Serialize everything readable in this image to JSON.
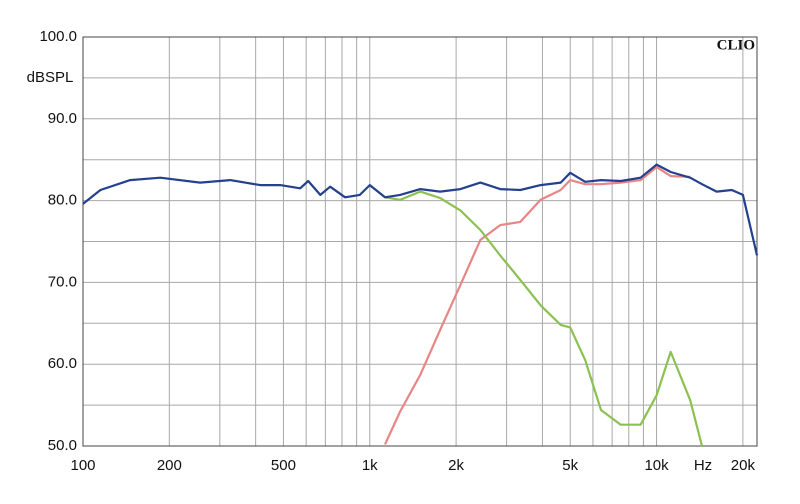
{
  "chart_data": {
    "type": "line",
    "watermark": "CLIO",
    "ylabel": "dBSPL",
    "xlabel": "Hz",
    "xscale": "log",
    "grid": true,
    "xlim": [
      100,
      22400
    ],
    "ylim": [
      50,
      100
    ],
    "xticks": [
      100,
      200,
      500,
      {
        "value": 1000,
        "label": "1k"
      },
      {
        "value": 2000,
        "label": "2k"
      },
      {
        "value": 5000,
        "label": "5k"
      },
      {
        "value": 10000,
        "label": "10k"
      },
      {
        "value": 20000,
        "label": "20k"
      }
    ],
    "xminor": [
      300,
      400,
      600,
      700,
      800,
      900,
      3000,
      4000,
      6000,
      7000,
      8000,
      9000
    ],
    "yticks": [
      {
        "value": 50,
        "label": "50.0"
      },
      {
        "value": 60,
        "label": "60.0"
      },
      {
        "value": 70,
        "label": "70.0"
      },
      {
        "value": 80,
        "label": "80.0"
      },
      {
        "value": 90,
        "label": "90.0"
      },
      {
        "value": 100,
        "label": "100.0"
      }
    ],
    "yminor": [
      55,
      65,
      75,
      85,
      95
    ],
    "x": [
      100,
      115,
      146,
      186,
      256,
      326,
      415,
      487,
      572,
      610,
      672,
      728,
      820,
      923,
      1000,
      1130,
      1276,
      1500,
      1760,
      2070,
      2430,
      2850,
      3350,
      3940,
      4630,
      5000,
      5640,
      6400,
      7500,
      8800,
      10000,
      11200,
      13100,
      14400,
      16200,
      18300,
      20000,
      22400
    ],
    "series": [
      {
        "color": "#e88585",
        "values": [
          null,
          null,
          null,
          null,
          null,
          null,
          null,
          null,
          null,
          null,
          null,
          null,
          null,
          null,
          null,
          50.2,
          54.2,
          58.7,
          64.2,
          69.7,
          75.2,
          77.0,
          77.4,
          80.1,
          81.3,
          82.5,
          82.0,
          82.0,
          82.2,
          82.5,
          84.1,
          83.0,
          82.9,
          null,
          null,
          null,
          null,
          null
        ]
      },
      {
        "color": "#8cc152",
        "values": [
          null,
          null,
          null,
          null,
          null,
          null,
          null,
          null,
          null,
          null,
          null,
          null,
          null,
          null,
          81.9,
          80.4,
          80.1,
          81.1,
          80.3,
          78.8,
          76.4,
          73.3,
          70.3,
          67.2,
          64.8,
          64.5,
          60.5,
          54.4,
          52.6,
          52.6,
          56.2,
          61.5,
          55.6,
          50.0,
          null,
          null,
          null,
          null
        ]
      },
      {
        "color": "#24408e",
        "values": [
          79.6,
          81.3,
          82.5,
          82.8,
          82.2,
          82.5,
          81.9,
          81.9,
          81.5,
          82.4,
          80.7,
          81.7,
          80.4,
          80.7,
          81.9,
          80.4,
          80.7,
          81.4,
          81.1,
          81.4,
          82.2,
          81.4,
          81.3,
          81.9,
          82.2,
          83.4,
          82.3,
          82.5,
          82.4,
          82.8,
          84.4,
          83.5,
          82.8,
          82.0,
          81.1,
          81.3,
          80.7,
          73.3
        ]
      }
    ]
  }
}
